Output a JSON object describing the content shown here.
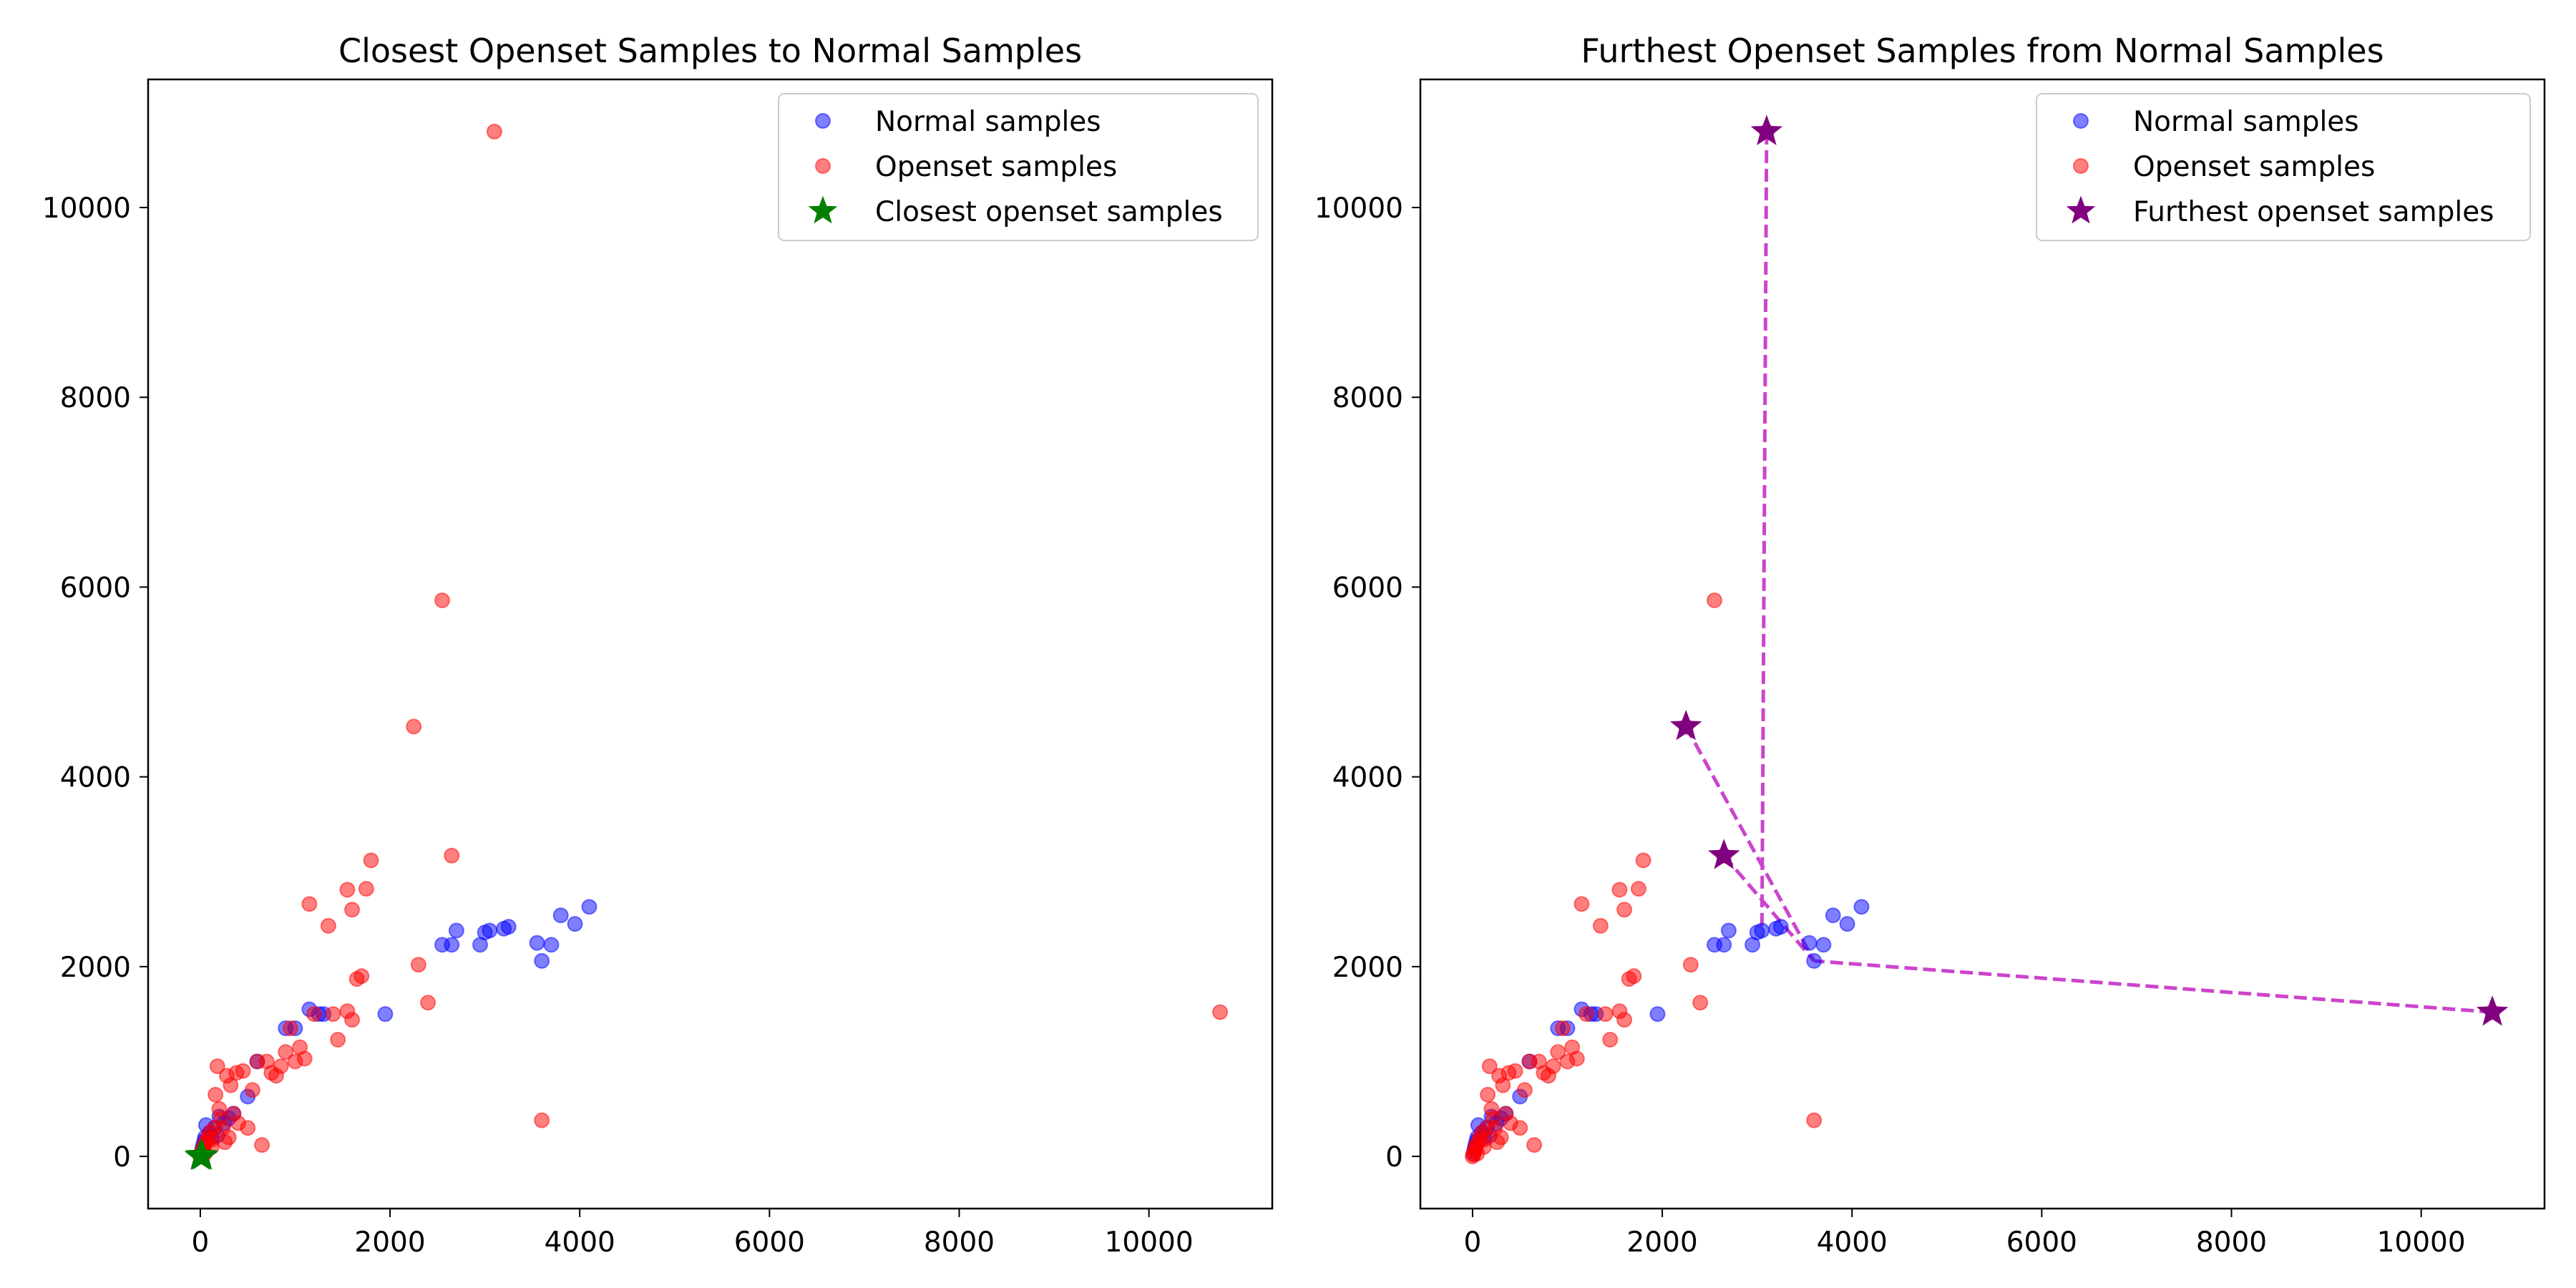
{
  "chart_data": [
    {
      "type": "scatter",
      "title": "Closest Openset Samples to Normal Samples",
      "xlim": [
        -550,
        11300
      ],
      "ylim": [
        -550,
        11350
      ],
      "x_ticks": [
        0,
        2000,
        4000,
        6000,
        8000,
        10000
      ],
      "y_ticks": [
        0,
        2000,
        4000,
        6000,
        8000,
        10000
      ],
      "grid": false,
      "legend_position": "top-right",
      "series": [
        {
          "name": "Normal samples",
          "color": "#0000ff",
          "marker": "circle",
          "points": [
            [
              10,
              30
            ],
            [
              20,
              80
            ],
            [
              30,
              120
            ],
            [
              40,
              160
            ],
            [
              50,
              200
            ],
            [
              60,
              330
            ],
            [
              100,
              250
            ],
            [
              120,
              200
            ],
            [
              150,
              300
            ],
            [
              180,
              220
            ],
            [
              200,
              420
            ],
            [
              250,
              350
            ],
            [
              300,
              400
            ],
            [
              350,
              450
            ],
            [
              500,
              630
            ],
            [
              600,
              1000
            ],
            [
              900,
              1350
            ],
            [
              1000,
              1350
            ],
            [
              1150,
              1550
            ],
            [
              1250,
              1500
            ],
            [
              1300,
              1500
            ],
            [
              1950,
              1500
            ],
            [
              2550,
              2230
            ],
            [
              2650,
              2230
            ],
            [
              2700,
              2380
            ],
            [
              2950,
              2230
            ],
            [
              3000,
              2360
            ],
            [
              3050,
              2380
            ],
            [
              3200,
              2400
            ],
            [
              3250,
              2420
            ],
            [
              3550,
              2250
            ],
            [
              3600,
              2060
            ],
            [
              3700,
              2230
            ],
            [
              3800,
              2540
            ],
            [
              3950,
              2450
            ],
            [
              4100,
              2630
            ]
          ]
        },
        {
          "name": "Openset samples",
          "color": "#ff0000",
          "marker": "circle",
          "points": [
            [
              0,
              0
            ],
            [
              10,
              20
            ],
            [
              20,
              50
            ],
            [
              30,
              80
            ],
            [
              40,
              120
            ],
            [
              50,
              30
            ],
            [
              60,
              150
            ],
            [
              80,
              200
            ],
            [
              100,
              250
            ],
            [
              120,
              100
            ],
            [
              130,
              180
            ],
            [
              150,
              300
            ],
            [
              160,
              650
            ],
            [
              180,
              950
            ],
            [
              200,
              500
            ],
            [
              220,
              400
            ],
            [
              240,
              300
            ],
            [
              260,
              150
            ],
            [
              280,
              850
            ],
            [
              300,
              200
            ],
            [
              320,
              750
            ],
            [
              350,
              450
            ],
            [
              380,
              880
            ],
            [
              400,
              350
            ],
            [
              450,
              900
            ],
            [
              500,
              300
            ],
            [
              550,
              700
            ],
            [
              600,
              1000
            ],
            [
              650,
              120
            ],
            [
              700,
              1000
            ],
            [
              750,
              880
            ],
            [
              800,
              850
            ],
            [
              850,
              950
            ],
            [
              900,
              1100
            ],
            [
              950,
              1350
            ],
            [
              1000,
              1000
            ],
            [
              1050,
              1150
            ],
            [
              1100,
              1030
            ],
            [
              1150,
              2660
            ],
            [
              1200,
              1500
            ],
            [
              1350,
              2430
            ],
            [
              1400,
              1500
            ],
            [
              1450,
              1230
            ],
            [
              1550,
              2810
            ],
            [
              1550,
              1530
            ],
            [
              1600,
              2600
            ],
            [
              1600,
              1440
            ],
            [
              1650,
              1870
            ],
            [
              1700,
              1900
            ],
            [
              1750,
              2820
            ],
            [
              1800,
              3120
            ],
            [
              2250,
              4530
            ],
            [
              2300,
              2020
            ],
            [
              2400,
              1620
            ],
            [
              2550,
              5860
            ],
            [
              2650,
              3170
            ],
            [
              3100,
              10800
            ],
            [
              3600,
              380
            ],
            [
              10750,
              1520
            ]
          ]
        },
        {
          "name": "Closest openset samples",
          "color": "#008000",
          "marker": "star",
          "points": [
            [
              0,
              0
            ],
            [
              10,
              10
            ],
            [
              20,
              0
            ]
          ]
        }
      ]
    },
    {
      "type": "scatter",
      "title": "Furthest Openset Samples from Normal Samples",
      "xlim": [
        -550,
        11300
      ],
      "ylim": [
        -550,
        11350
      ],
      "x_ticks": [
        0,
        2000,
        4000,
        6000,
        8000,
        10000
      ],
      "y_ticks": [
        0,
        2000,
        4000,
        6000,
        8000,
        10000
      ],
      "grid": false,
      "legend_position": "top-right",
      "series": [
        {
          "name": "Normal samples",
          "color": "#0000ff",
          "marker": "circle",
          "points": [
            [
              10,
              30
            ],
            [
              20,
              80
            ],
            [
              30,
              120
            ],
            [
              40,
              160
            ],
            [
              50,
              200
            ],
            [
              60,
              330
            ],
            [
              100,
              250
            ],
            [
              120,
              200
            ],
            [
              150,
              300
            ],
            [
              180,
              220
            ],
            [
              200,
              420
            ],
            [
              250,
              350
            ],
            [
              300,
              400
            ],
            [
              350,
              450
            ],
            [
              500,
              630
            ],
            [
              600,
              1000
            ],
            [
              900,
              1350
            ],
            [
              1000,
              1350
            ],
            [
              1150,
              1550
            ],
            [
              1250,
              1500
            ],
            [
              1300,
              1500
            ],
            [
              1950,
              1500
            ],
            [
              2550,
              2230
            ],
            [
              2650,
              2230
            ],
            [
              2700,
              2380
            ],
            [
              2950,
              2230
            ],
            [
              3000,
              2360
            ],
            [
              3050,
              2380
            ],
            [
              3200,
              2400
            ],
            [
              3250,
              2420
            ],
            [
              3550,
              2250
            ],
            [
              3600,
              2060
            ],
            [
              3700,
              2230
            ],
            [
              3800,
              2540
            ],
            [
              3950,
              2450
            ],
            [
              4100,
              2630
            ]
          ]
        },
        {
          "name": "Openset samples",
          "color": "#ff0000",
          "marker": "circle",
          "points": [
            [
              0,
              0
            ],
            [
              10,
              20
            ],
            [
              20,
              50
            ],
            [
              30,
              80
            ],
            [
              40,
              120
            ],
            [
              50,
              30
            ],
            [
              60,
              150
            ],
            [
              80,
              200
            ],
            [
              100,
              250
            ],
            [
              120,
              100
            ],
            [
              130,
              180
            ],
            [
              150,
              300
            ],
            [
              160,
              650
            ],
            [
              180,
              950
            ],
            [
              200,
              500
            ],
            [
              220,
              400
            ],
            [
              240,
              300
            ],
            [
              260,
              150
            ],
            [
              280,
              850
            ],
            [
              300,
              200
            ],
            [
              320,
              750
            ],
            [
              350,
              450
            ],
            [
              380,
              880
            ],
            [
              400,
              350
            ],
            [
              450,
              900
            ],
            [
              500,
              300
            ],
            [
              550,
              700
            ],
            [
              600,
              1000
            ],
            [
              650,
              120
            ],
            [
              700,
              1000
            ],
            [
              750,
              880
            ],
            [
              800,
              850
            ],
            [
              850,
              950
            ],
            [
              900,
              1100
            ],
            [
              950,
              1350
            ],
            [
              1000,
              1000
            ],
            [
              1050,
              1150
            ],
            [
              1100,
              1030
            ],
            [
              1150,
              2660
            ],
            [
              1200,
              1500
            ],
            [
              1350,
              2430
            ],
            [
              1400,
              1500
            ],
            [
              1450,
              1230
            ],
            [
              1550,
              2810
            ],
            [
              1550,
              1530
            ],
            [
              1600,
              2600
            ],
            [
              1600,
              1440
            ],
            [
              1650,
              1870
            ],
            [
              1700,
              1900
            ],
            [
              1750,
              2820
            ],
            [
              1800,
              3120
            ],
            [
              2250,
              4530
            ],
            [
              2300,
              2020
            ],
            [
              2400,
              1620
            ],
            [
              2550,
              5860
            ],
            [
              2650,
              3170
            ],
            [
              3100,
              10800
            ],
            [
              3600,
              380
            ],
            [
              10750,
              1520
            ]
          ]
        },
        {
          "name": "Furthest openset samples",
          "color": "#800080",
          "marker": "star",
          "points": [
            [
              3100,
              10800
            ],
            [
              2250,
              4530
            ],
            [
              2650,
              3170
            ],
            [
              10750,
              1520
            ]
          ]
        }
      ],
      "connectors": {
        "color": "#cc44cc",
        "style": "dashed",
        "segments": [
          [
            [
              3100,
              10800
            ],
            [
              3050,
              2380
            ]
          ],
          [
            [
              2250,
              4530
            ],
            [
              3600,
              2060
            ]
          ],
          [
            [
              2650,
              3170
            ],
            [
              3600,
              2060
            ]
          ],
          [
            [
              10750,
              1520
            ],
            [
              3600,
              2060
            ]
          ]
        ]
      }
    }
  ]
}
